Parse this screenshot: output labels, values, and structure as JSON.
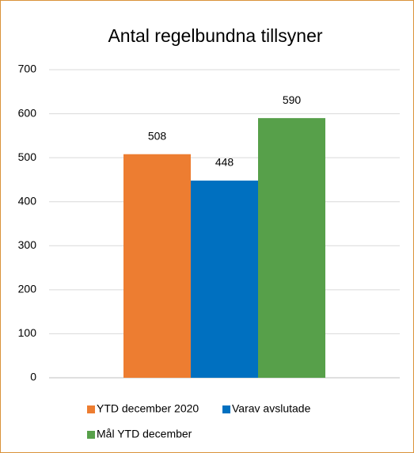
{
  "chart_data": {
    "type": "bar",
    "title": "Antal regelbundna tillsyner",
    "categories": [
      null
    ],
    "series": [
      {
        "name": "YTD december 2020",
        "color": "#ed7d31",
        "values": [
          508
        ]
      },
      {
        "name": "Varav avslutade",
        "color": "#0070c0",
        "values": [
          448
        ]
      },
      {
        "name": "Mål YTD december",
        "color": "#57a04a",
        "values": [
          590
        ]
      }
    ],
    "ylim": [
      0,
      700
    ],
    "yticks": [
      0,
      100,
      200,
      300,
      400,
      500,
      600,
      700
    ],
    "grid": true,
    "legend": "bottom"
  }
}
